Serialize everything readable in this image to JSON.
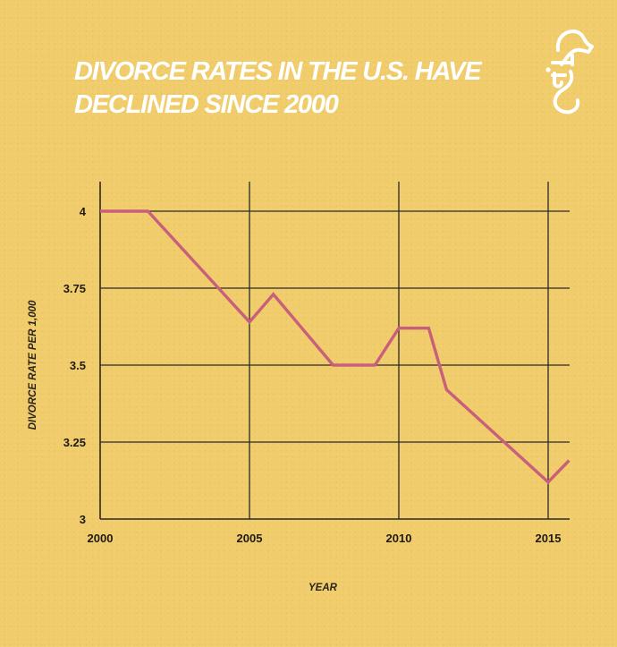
{
  "header": {
    "title_line1": "DIVORCE RATES IN THE U.S. HAVE",
    "title_line2": "DECLINED SINCE 2000",
    "logo_icon": "seahorse-logo-icon"
  },
  "colors": {
    "background": "#f0cc6a",
    "line": "#c8607c",
    "grid": "#2a2a2a",
    "title": "#ffffff"
  },
  "chart_data": {
    "type": "line",
    "title": "DIVORCE RATES IN THE U.S. HAVE DECLINED SINCE 2000",
    "xlabel": "YEAR",
    "ylabel": "DIVORCE RATE PER 1,000",
    "xlim": [
      2000,
      2015.7
    ],
    "ylim": [
      3,
      4.1
    ],
    "x_ticks": [
      2000,
      2005,
      2010,
      2015
    ],
    "x_tick_labels": [
      "2000",
      "2005",
      "2010",
      "2015"
    ],
    "y_ticks": [
      3,
      3.25,
      3.5,
      3.75,
      4
    ],
    "y_tick_labels": [
      "3",
      "3.25",
      "3.5",
      "3.75",
      "4"
    ],
    "grid": true,
    "legend": "none",
    "series": [
      {
        "x": [
          2000,
          2001.6,
          2005,
          2005.8,
          2007.8,
          2009.2,
          2010,
          2011,
          2011.6,
          2015,
          2015.7
        ],
        "values": [
          4.0,
          4.0,
          3.64,
          3.73,
          3.5,
          3.5,
          3.62,
          3.62,
          3.42,
          3.12,
          3.19
        ]
      }
    ]
  }
}
